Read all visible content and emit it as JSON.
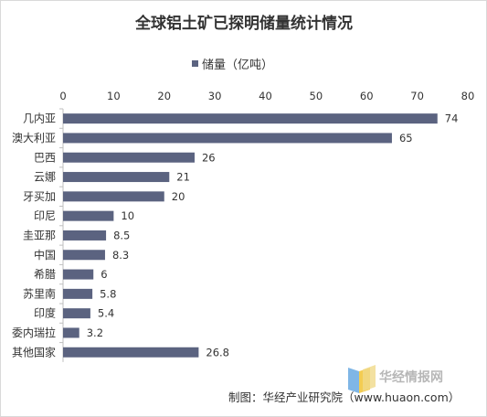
{
  "chart_data": {
    "type": "bar",
    "orientation": "horizontal",
    "title": "全球铝土矿已探明储量统计情况",
    "legend": {
      "label": "储量（亿吨）",
      "position": "top"
    },
    "categories": [
      "几内亚",
      "澳大利亚",
      "巴西",
      "云娜",
      "牙买加",
      "印尼",
      "圭亚那",
      "中国",
      "希腊",
      "苏里南",
      "印度",
      "委内瑞拉",
      "其他国家"
    ],
    "series": [
      {
        "name": "储量（亿吨）",
        "values": [
          74,
          65,
          26,
          21,
          20,
          10,
          8.5,
          8.3,
          6,
          5.8,
          5.4,
          3.2,
          26.8
        ]
      }
    ],
    "data_labels": [
      "74",
      "65",
      "26",
      "21",
      "20",
      "10",
      "8.5",
      "8.3",
      "6",
      "5.8",
      "5.4",
      "3.2",
      "26.8"
    ],
    "xlim": [
      0,
      80
    ],
    "xticks": [
      0,
      10,
      20,
      30,
      40,
      50,
      60,
      70,
      80
    ],
    "x_axis_position": "top",
    "grid": false,
    "bar_color": "#5b6380"
  },
  "source": "制图：华经产业研究院（www.huaon.com）",
  "watermark": "华经情报网"
}
